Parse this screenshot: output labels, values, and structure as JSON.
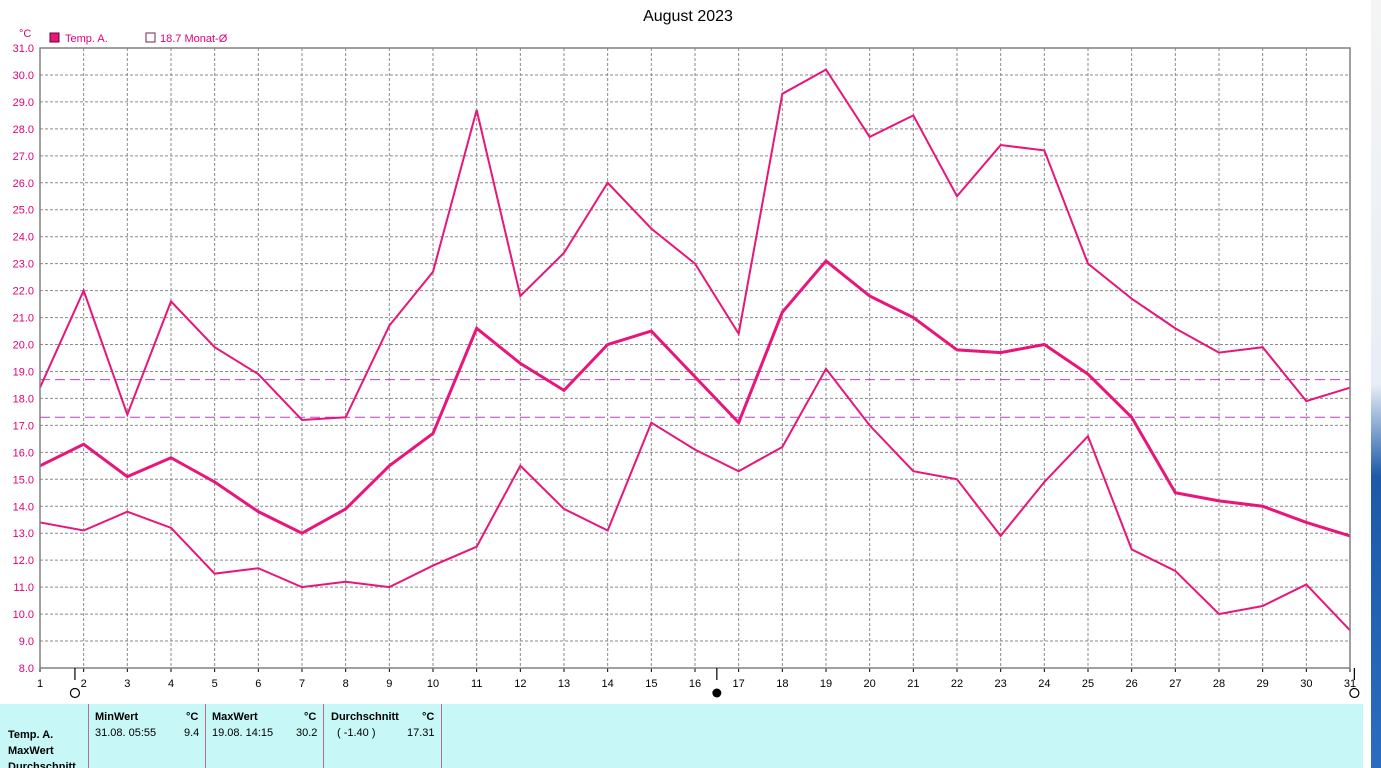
{
  "chart_data": {
    "type": "line",
    "title": "August 2023",
    "yunit": "°C",
    "ylim": [
      8.0,
      31.0
    ],
    "ytick_step": 1.0,
    "x": [
      1,
      2,
      3,
      4,
      5,
      6,
      7,
      8,
      9,
      10,
      11,
      12,
      13,
      14,
      15,
      16,
      17,
      18,
      19,
      20,
      21,
      22,
      23,
      24,
      25,
      26,
      27,
      28,
      29,
      30,
      31
    ],
    "series": [
      {
        "name": "Temp. A.",
        "role": "max",
        "values": [
          18.4,
          22.0,
          17.4,
          21.6,
          19.9,
          18.9,
          17.2,
          17.3,
          20.7,
          22.7,
          28.7,
          21.8,
          23.4,
          26.0,
          24.3,
          23.0,
          20.4,
          29.3,
          30.2,
          27.7,
          28.5,
          25.5,
          27.4,
          27.2,
          23.0,
          21.7,
          20.6,
          19.7,
          19.9,
          17.9,
          18.4
        ]
      },
      {
        "name": "Temp. A.",
        "role": "average",
        "values": [
          15.5,
          16.3,
          15.1,
          15.8,
          14.9,
          13.8,
          13.0,
          13.9,
          15.5,
          16.7,
          20.6,
          19.3,
          18.3,
          20.0,
          20.5,
          18.8,
          17.1,
          21.2,
          23.1,
          21.8,
          21.0,
          19.8,
          19.7,
          20.0,
          18.9,
          17.3,
          14.5,
          14.2,
          14.0,
          13.4,
          12.9
        ]
      },
      {
        "name": "Temp. A.",
        "role": "min",
        "values": [
          13.4,
          13.1,
          13.8,
          13.2,
          11.5,
          11.7,
          11.0,
          11.2,
          11.0,
          11.8,
          12.5,
          15.5,
          13.9,
          13.1,
          17.1,
          16.1,
          15.3,
          16.2,
          19.1,
          17.0,
          15.3,
          15.0,
          12.9,
          14.9,
          16.6,
          12.4,
          11.6,
          10.0,
          10.3,
          11.1,
          9.4
        ]
      }
    ],
    "reference_lines": [
      {
        "label": "18.7 Monat-Ø",
        "value": 18.7
      },
      {
        "value": 17.3
      }
    ],
    "legend": [
      {
        "label": "Temp. A.",
        "filled": true
      },
      {
        "label": "18.7 Monat-Ø",
        "filled": false
      }
    ],
    "moon_markers": [
      {
        "x": 1.8,
        "phase": "full"
      },
      {
        "x": 16.5,
        "phase": "new"
      },
      {
        "x": 31.1,
        "phase": "full"
      }
    ],
    "grid": true,
    "colors": {
      "series": "#e8157a",
      "reference": "#c040c0",
      "grid": "#8a8a8a",
      "axis_text": "#e0007a"
    }
  },
  "stats": {
    "row_labels": [
      "Temp. A.",
      "MaxWert",
      "Durchschnitt"
    ],
    "min": {
      "header": "MinWert",
      "unit": "°C",
      "datetime": "31.08.  05:55",
      "value": "9.4"
    },
    "max": {
      "header": "MaxWert",
      "unit": "°C",
      "datetime": "19.08.  14:15",
      "value": "30.2"
    },
    "avg": {
      "header": "Durchschnitt",
      "unit": "°C",
      "deviation": "( -1.40 )",
      "value": "17.31"
    }
  }
}
